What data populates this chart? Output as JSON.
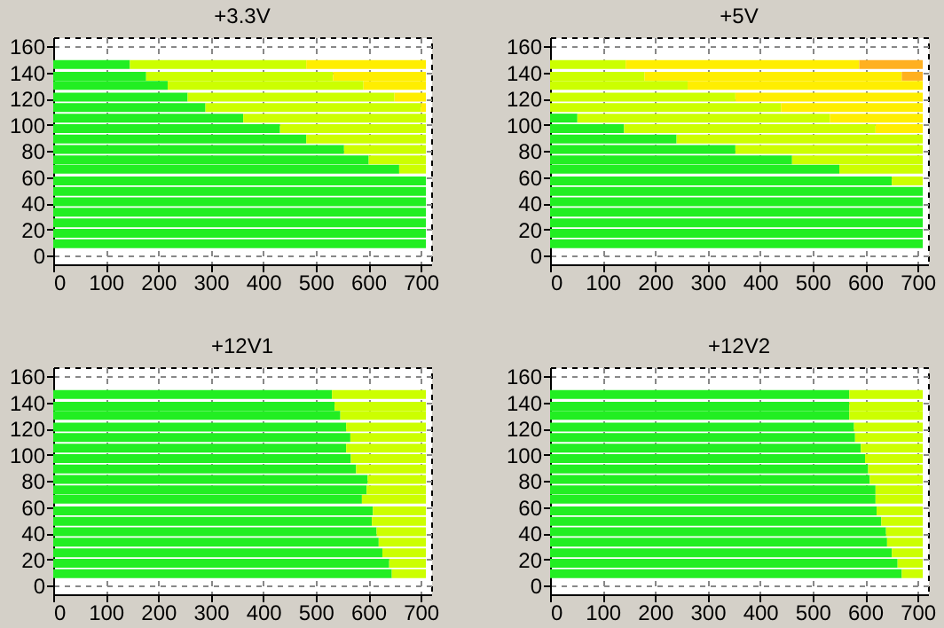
{
  "chart_data": [
    {
      "type": "bar",
      "title": "+3.3V",
      "orientation": "horizontal",
      "stacked": true,
      "grid": true,
      "x": [
        9,
        17,
        25,
        33,
        41,
        49,
        57,
        66,
        73,
        81,
        89,
        97,
        105,
        113,
        121,
        130,
        137,
        146
      ],
      "xlim": [
        0,
        720
      ],
      "xticks": [
        0,
        100,
        200,
        300,
        400,
        500,
        600,
        700
      ],
      "ylim": [
        0,
        160
      ],
      "yticks": [
        0,
        20,
        40,
        60,
        80,
        100,
        120,
        140,
        160
      ],
      "series": [
        {
          "color": "#22ee22",
          "values": [
            710,
            710,
            710,
            710,
            710,
            710,
            710,
            659,
            601,
            554,
            482,
            432,
            362,
            290,
            256,
            218,
            177,
            146
          ]
        },
        {
          "color": "#ccff00",
          "values": [
            0,
            0,
            0,
            0,
            0,
            0,
            0,
            51,
            109,
            156,
            228,
            278,
            348,
            410,
            394,
            373,
            356,
            336
          ]
        },
        {
          "color": "#ffee00",
          "values": [
            0,
            0,
            0,
            0,
            0,
            0,
            0,
            0,
            0,
            0,
            0,
            0,
            0,
            10,
            60,
            119,
            177,
            228
          ]
        }
      ]
    },
    {
      "type": "bar",
      "title": "+5V",
      "orientation": "horizontal",
      "stacked": true,
      "grid": true,
      "x": [
        9,
        17,
        25,
        33,
        41,
        49,
        57,
        66,
        73,
        81,
        89,
        97,
        105,
        113,
        121,
        130,
        137,
        146
      ],
      "xlim": [
        0,
        720
      ],
      "xticks": [
        0,
        100,
        200,
        300,
        400,
        500,
        600,
        700
      ],
      "ylim": [
        0,
        160
      ],
      "yticks": [
        0,
        20,
        40,
        60,
        80,
        100,
        120,
        140,
        160
      ],
      "series": [
        {
          "color": "#22ee22",
          "values": [
            710,
            710,
            710,
            710,
            710,
            710,
            651,
            551,
            461,
            353,
            241,
            141,
            52,
            0,
            0,
            0,
            0,
            0
          ]
        },
        {
          "color": "#ccff00",
          "values": [
            0,
            0,
            0,
            0,
            0,
            0,
            59,
            159,
            249,
            357,
            469,
            479,
            481,
            440,
            353,
            262,
            180,
            144
          ]
        },
        {
          "color": "#ffee00",
          "values": [
            0,
            0,
            0,
            0,
            0,
            0,
            0,
            0,
            0,
            0,
            0,
            90,
            177,
            270,
            357,
            448,
            490,
            445
          ]
        },
        {
          "color": "#ffb020",
          "values": [
            0,
            0,
            0,
            0,
            0,
            0,
            0,
            0,
            0,
            0,
            0,
            0,
            0,
            0,
            0,
            0,
            40,
            121
          ]
        }
      ]
    },
    {
      "type": "bar",
      "title": "+12V1",
      "orientation": "horizontal",
      "stacked": true,
      "grid": true,
      "x": [
        9,
        17,
        25,
        33,
        41,
        49,
        57,
        66,
        73,
        81,
        89,
        97,
        105,
        113,
        121,
        130,
        137,
        146
      ],
      "xlim": [
        0,
        720
      ],
      "xticks": [
        0,
        100,
        200,
        300,
        400,
        500,
        600,
        700
      ],
      "ylim": [
        0,
        160
      ],
      "yticks": [
        0,
        20,
        40,
        60,
        80,
        100,
        120,
        140,
        160
      ],
      "series": [
        {
          "color": "#22ee22",
          "values": [
            645,
            640,
            627,
            620,
            616,
            607,
            609,
            588,
            597,
            599,
            577,
            567,
            558,
            566,
            558,
            547,
            536,
            531
          ]
        },
        {
          "color": "#ccff00",
          "values": [
            65,
            70,
            83,
            90,
            94,
            103,
            101,
            122,
            113,
            111,
            133,
            143,
            152,
            144,
            152,
            163,
            174,
            179
          ]
        }
      ]
    },
    {
      "type": "bar",
      "title": "+12V2",
      "orientation": "horizontal",
      "stacked": true,
      "grid": true,
      "x": [
        9,
        17,
        25,
        33,
        41,
        49,
        57,
        66,
        73,
        81,
        89,
        97,
        105,
        113,
        121,
        130,
        137,
        146
      ],
      "xlim": [
        0,
        720
      ],
      "xticks": [
        0,
        100,
        200,
        300,
        400,
        500,
        600,
        700
      ],
      "ylim": [
        0,
        160
      ],
      "yticks": [
        0,
        20,
        40,
        60,
        80,
        100,
        120,
        140,
        160
      ],
      "series": [
        {
          "color": "#22ee22",
          "values": [
            670,
            662,
            651,
            642,
            640,
            631,
            622,
            620,
            620,
            609,
            606,
            600,
            592,
            581,
            579,
            570,
            570,
            570
          ]
        },
        {
          "color": "#ccff00",
          "values": [
            40,
            48,
            59,
            68,
            70,
            79,
            88,
            90,
            90,
            101,
            104,
            110,
            118,
            129,
            131,
            140,
            140,
            140
          ]
        }
      ]
    }
  ]
}
